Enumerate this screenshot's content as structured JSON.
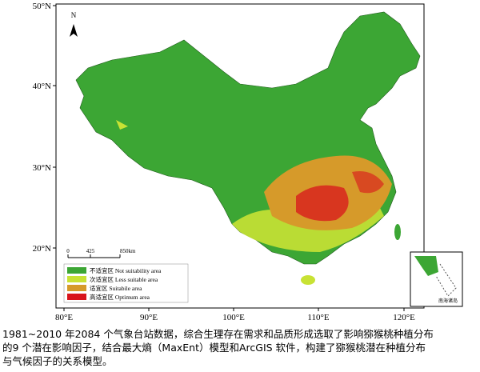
{
  "map": {
    "north_arrow": "N",
    "lat_labels": [
      "50°N",
      "40°N",
      "30°N",
      "20°N"
    ],
    "lon_labels": [
      "80°E",
      "90°E",
      "100°E",
      "110°E",
      "120°E"
    ],
    "scale_bar": [
      "0",
      "425",
      "850km"
    ],
    "legend": [
      {
        "label": "不适宜区 Not suitability area",
        "color": "#3ca634"
      },
      {
        "label": "次适宜区 Less suitable area",
        "color": "#c8e234"
      },
      {
        "label": "适宜区 Suitabile area",
        "color": "#d69a2a"
      },
      {
        "label": "高适宜区 Optimum area",
        "color": "#d8141c"
      }
    ],
    "inset_label": "南海诸岛"
  },
  "caption": {
    "lines": [
      "1981~2010 年2084 个气象台站数据，综合生理存在需求和品质形成选取了影响猕猴桃种植分布",
      "的9 个潜在影响因子，结合最大熵（MaxEnt）模型和ArcGIS 软件，构建了猕猴桃潜在种植分布",
      "与气候因子的关系模型。"
    ]
  }
}
